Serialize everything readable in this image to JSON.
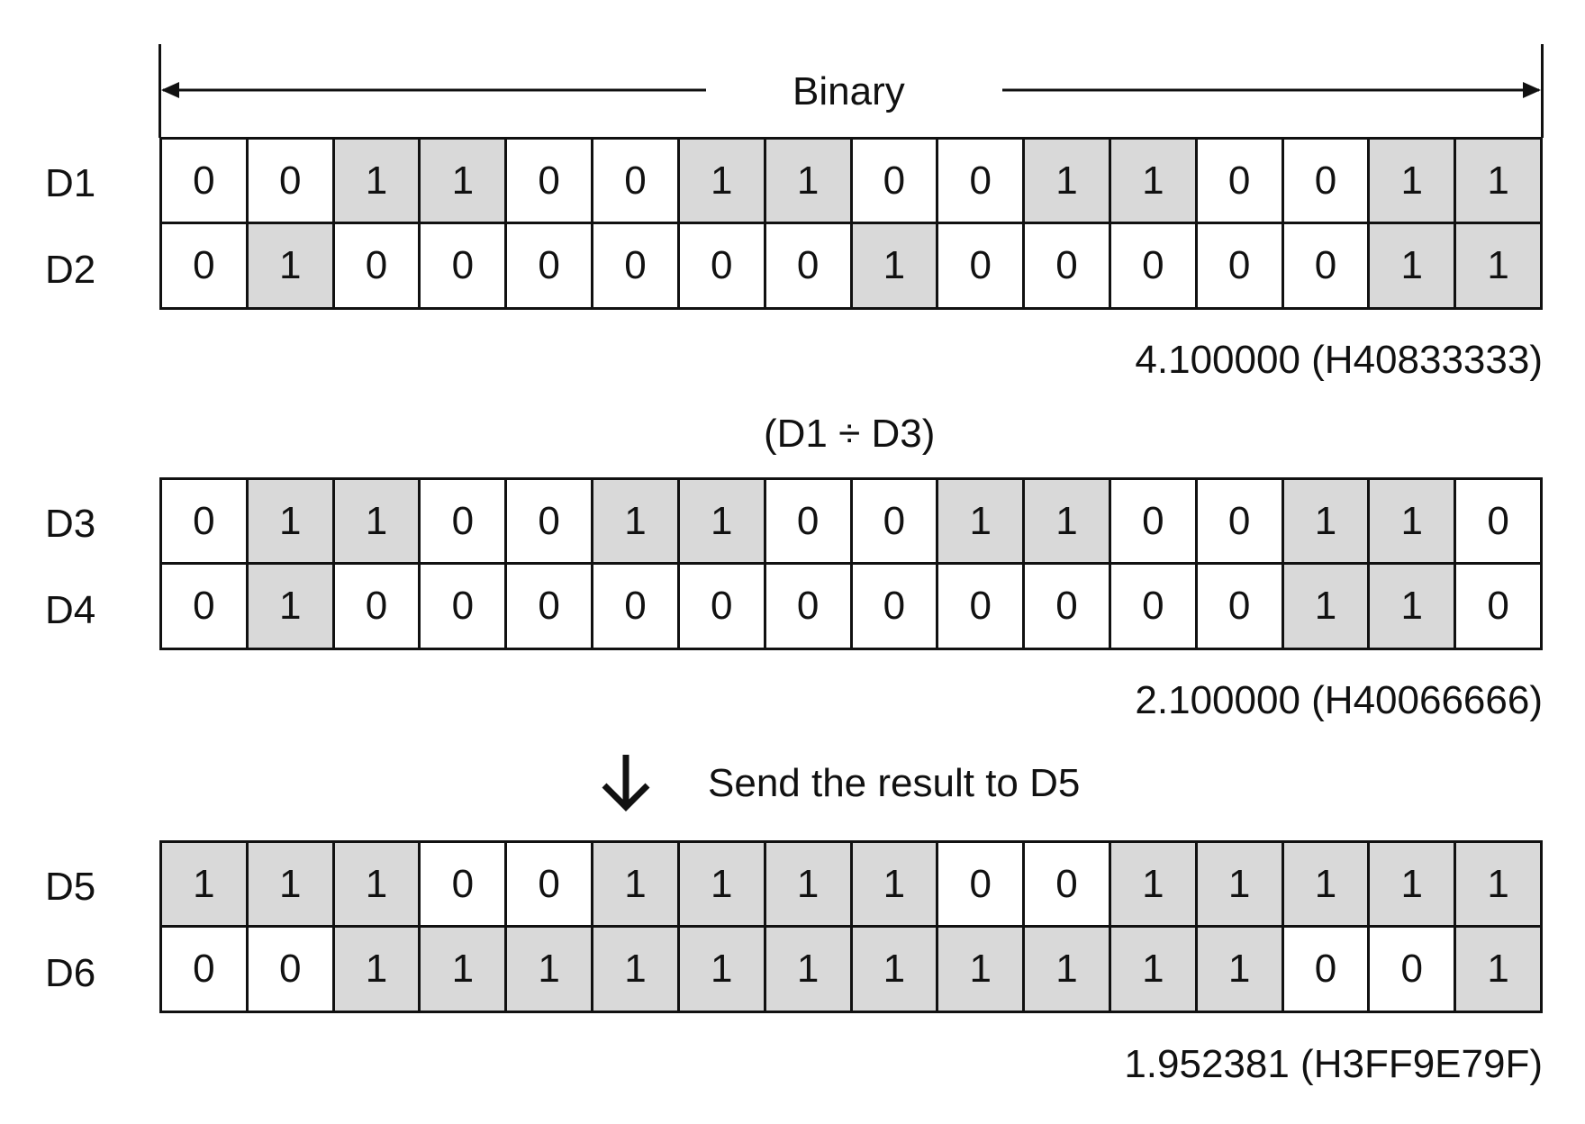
{
  "header": {
    "label": "Binary"
  },
  "colors": {
    "set_bit": "#d9d9d9",
    "clear_bit": "#ffffff",
    "line": "#111111"
  },
  "groups": [
    {
      "rows": [
        {
          "label": "D1",
          "bits": [
            0,
            0,
            1,
            1,
            0,
            0,
            1,
            1,
            0,
            0,
            1,
            1,
            0,
            0,
            1,
            1
          ]
        },
        {
          "label": "D2",
          "bits": [
            0,
            1,
            0,
            0,
            0,
            0,
            0,
            0,
            1,
            0,
            0,
            0,
            0,
            0,
            1,
            1
          ]
        }
      ],
      "value": "4.100000 (H40833333)"
    },
    {
      "rows": [
        {
          "label": "D3",
          "bits": [
            0,
            1,
            1,
            0,
            0,
            1,
            1,
            0,
            0,
            1,
            1,
            0,
            0,
            1,
            1,
            0
          ]
        },
        {
          "label": "D4",
          "bits": [
            0,
            1,
            0,
            0,
            0,
            0,
            0,
            0,
            0,
            0,
            0,
            0,
            0,
            1,
            1,
            0
          ]
        }
      ],
      "value": "2.100000 (H40066666)"
    },
    {
      "rows": [
        {
          "label": "D5",
          "bits": [
            1,
            1,
            1,
            0,
            0,
            1,
            1,
            1,
            1,
            0,
            0,
            1,
            1,
            1,
            1,
            1
          ]
        },
        {
          "label": "D6",
          "bits": [
            0,
            0,
            1,
            1,
            1,
            1,
            1,
            1,
            1,
            1,
            1,
            1,
            1,
            0,
            0,
            1
          ]
        }
      ],
      "value": "1.952381 (H3FF9E79F)"
    }
  ],
  "operation": "(D1 ÷ D3)",
  "result_note": "Send the result to D5",
  "icons": {
    "result_arrow": "arrow-down-icon"
  }
}
